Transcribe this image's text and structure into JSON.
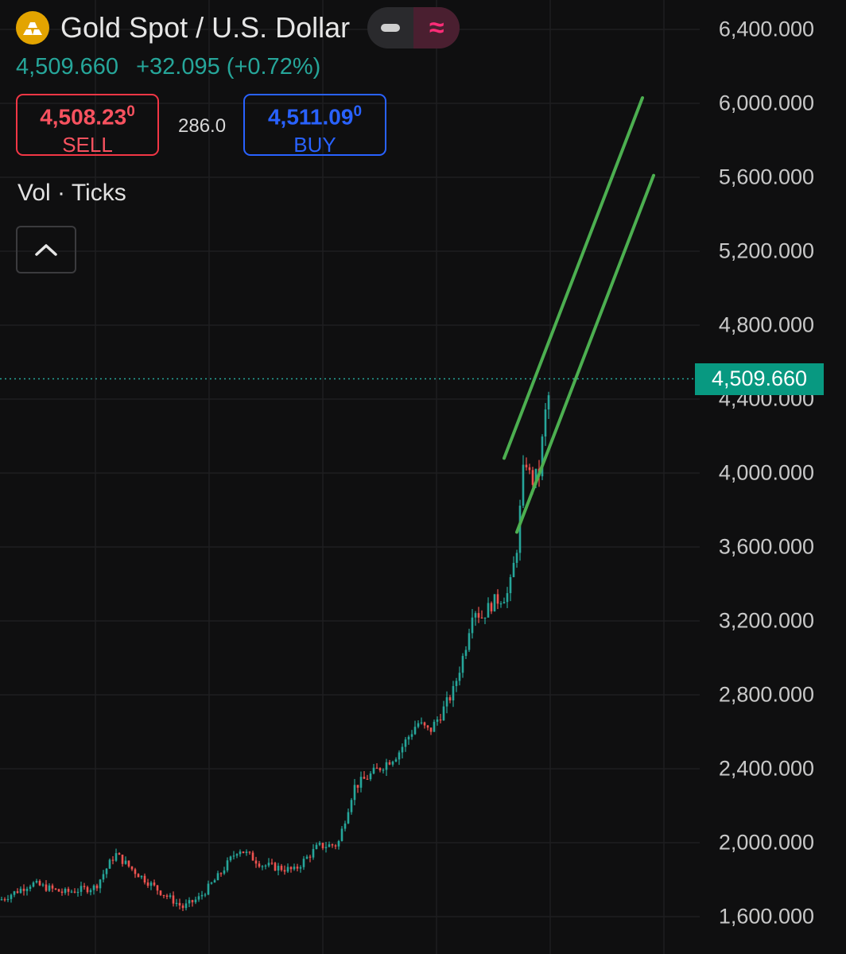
{
  "header": {
    "symbol_title": "Gold Spot / U.S. Dollar",
    "last_price": "4,509.660",
    "change": "+32.095",
    "change_pct": "(+0.72%)"
  },
  "trade": {
    "sell_price_main": "4,508.23",
    "sell_price_sup": "0",
    "sell_label": "SELL",
    "spread": "286.0",
    "buy_price_main": "4,511.09",
    "buy_price_sup": "0",
    "buy_label": "BUY"
  },
  "indicator": {
    "label": "Vol · Ticks"
  },
  "icons": {
    "symbol": "gold-bars-icon",
    "mode_left": "minus-icon",
    "mode_right": "approx-wave-icon",
    "collapse": "chevron-up-icon"
  },
  "colors": {
    "background": "#0f0f10",
    "up": "#26a69a",
    "down": "#ef5350",
    "channel": "#4caf50",
    "sell": "#f23645",
    "buy": "#2962ff",
    "last_price_tag": "#089981",
    "mode_active": "#ff2d78",
    "symbol_icon": "#e3a400"
  },
  "chart_data": {
    "type": "candlestick",
    "y_ticks": [
      "1,600.000",
      "2,000.000",
      "2,400.000",
      "2,800.000",
      "3,200.000",
      "3,600.000",
      "4,000.000",
      "4,400.000",
      "4,800.000",
      "5,200.000",
      "5,600.000",
      "6,000.000",
      "6,400.000"
    ],
    "y_tick_values": [
      1600,
      2000,
      2400,
      2800,
      3200,
      3600,
      4000,
      4400,
      4800,
      5200,
      5600,
      6000,
      6400
    ],
    "ylim": [
      1580,
      6420
    ],
    "last_price_value": 4509.66,
    "last_price_label": "4,509.660",
    "grid": true,
    "price_path_approx": [
      [
        0,
        1690
      ],
      [
        40,
        1780
      ],
      [
        80,
        1730
      ],
      [
        120,
        1760
      ],
      [
        145,
        1940
      ],
      [
        165,
        1860
      ],
      [
        200,
        1740
      ],
      [
        230,
        1650
      ],
      [
        250,
        1700
      ],
      [
        275,
        1820
      ],
      [
        300,
        1970
      ],
      [
        330,
        1880
      ],
      [
        370,
        1850
      ],
      [
        400,
        1980
      ],
      [
        425,
        1990
      ],
      [
        445,
        2300
      ],
      [
        470,
        2380
      ],
      [
        500,
        2480
      ],
      [
        525,
        2650
      ],
      [
        540,
        2600
      ],
      [
        555,
        2700
      ],
      [
        570,
        2820
      ],
      [
        585,
        3050
      ],
      [
        595,
        3280
      ],
      [
        605,
        3220
      ],
      [
        620,
        3300
      ],
      [
        640,
        3350
      ],
      [
        650,
        3600
      ],
      [
        660,
        4100
      ],
      [
        668,
        3950
      ],
      [
        678,
        4000
      ],
      [
        685,
        4300
      ],
      [
        692,
        4460
      ]
    ],
    "channel_lines": [
      {
        "from": [
          634,
          4080
        ],
        "to": [
          808,
          6030
        ]
      },
      {
        "from": [
          650,
          3680
        ],
        "to": [
          822,
          5610
        ]
      }
    ]
  }
}
